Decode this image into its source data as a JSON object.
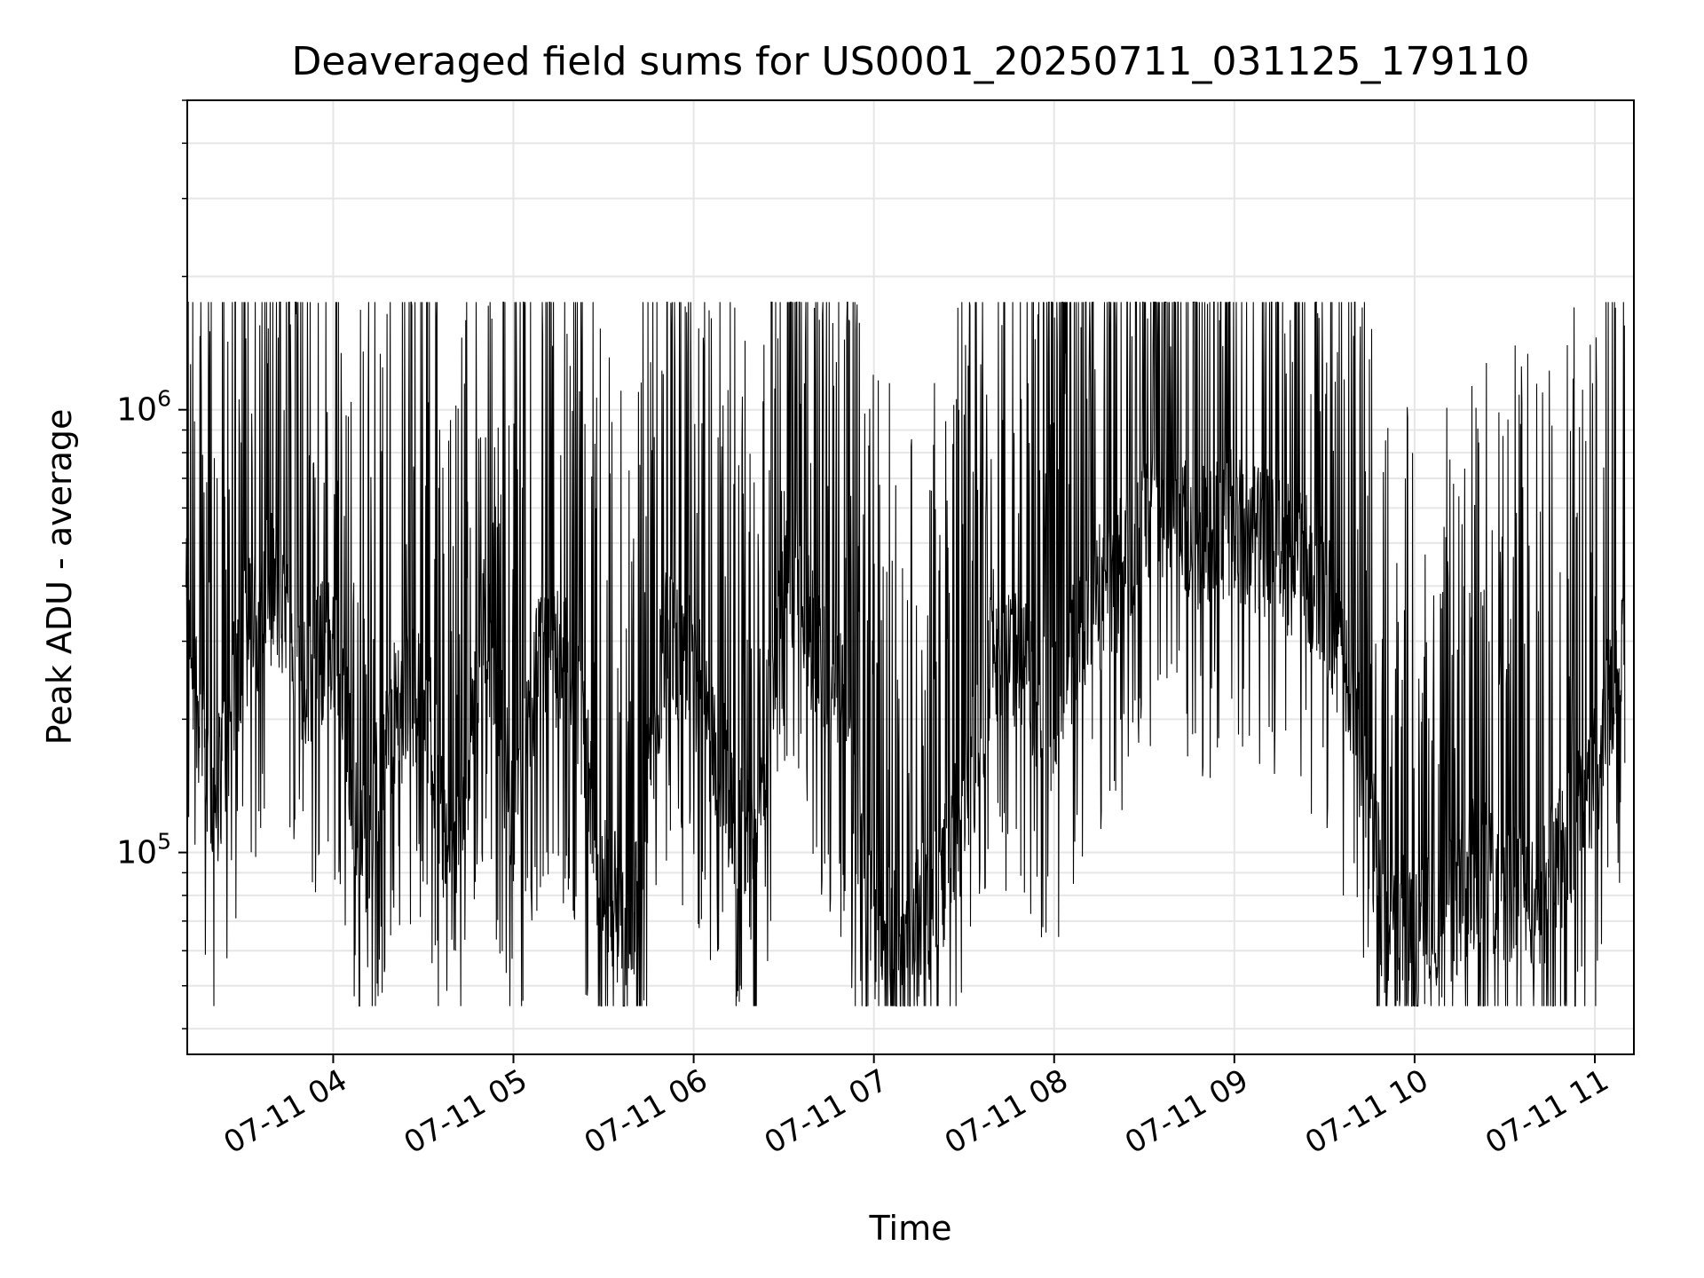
{
  "chart_data": {
    "type": "line",
    "title": "Deaveraged field sums for US0001_20250711_031125_179110",
    "xlabel": "Time",
    "ylabel": "Peak ADU - average",
    "y_scale": "log",
    "x_range": [
      "2025-07-11 03:11:25",
      "2025-07-11 11:13:00"
    ],
    "y_range": [
      35000,
      5000000
    ],
    "x_ticks": [
      {
        "value": "2025-07-11 04:00",
        "label": "07-11 04"
      },
      {
        "value": "2025-07-11 05:00",
        "label": "07-11 05"
      },
      {
        "value": "2025-07-11 06:00",
        "label": "07-11 06"
      },
      {
        "value": "2025-07-11 07:00",
        "label": "07-11 07"
      },
      {
        "value": "2025-07-11 08:00",
        "label": "07-11 08"
      },
      {
        "value": "2025-07-11 09:00",
        "label": "07-11 09"
      },
      {
        "value": "2025-07-11 10:00",
        "label": "07-11 10"
      },
      {
        "value": "2025-07-11 11:00",
        "label": "07-11 11"
      }
    ],
    "y_ticks": [
      {
        "value": 100000,
        "base": "10",
        "exp": "5"
      },
      {
        "value": 1000000,
        "base": "10",
        "exp": "6"
      }
    ],
    "grid": true,
    "line_color": "#000000",
    "grid_color": "#e6e6e6",
    "series": [
      {
        "x": [
          "2025-07-11 03:11",
          "2025-07-11 03:20",
          "2025-07-11 03:30",
          "2025-07-11 03:40",
          "2025-07-11 03:50",
          "2025-07-11 04:00",
          "2025-07-11 04:10",
          "2025-07-11 04:20",
          "2025-07-11 04:30",
          "2025-07-11 04:40",
          "2025-07-11 04:50",
          "2025-07-11 05:00",
          "2025-07-11 05:10",
          "2025-07-11 05:20",
          "2025-07-11 05:30",
          "2025-07-11 05:40",
          "2025-07-11 05:50",
          "2025-07-11 06:00",
          "2025-07-11 06:10",
          "2025-07-11 06:20",
          "2025-07-11 06:30",
          "2025-07-11 06:40",
          "2025-07-11 06:50",
          "2025-07-11 07:00",
          "2025-07-11 07:10",
          "2025-07-11 07:20",
          "2025-07-11 07:30",
          "2025-07-11 07:40",
          "2025-07-11 07:50",
          "2025-07-11 08:00",
          "2025-07-11 08:10",
          "2025-07-11 08:20",
          "2025-07-11 08:30",
          "2025-07-11 08:40",
          "2025-07-11 08:50",
          "2025-07-11 09:00",
          "2025-07-11 09:10",
          "2025-07-11 09:20",
          "2025-07-11 09:30",
          "2025-07-11 09:40",
          "2025-07-11 09:50",
          "2025-07-11 10:00",
          "2025-07-11 10:10",
          "2025-07-11 10:20",
          "2025-07-11 10:30",
          "2025-07-11 10:40",
          "2025-07-11 10:50",
          "2025-07-11 11:00",
          "2025-07-11 11:10"
        ],
        "y": [
          350000,
          120000,
          300000,
          400000,
          250000,
          300000,
          100000,
          200000,
          250000,
          80000,
          350000,
          120000,
          300000,
          250000,
          80000,
          70000,
          300000,
          250000,
          150000,
          90000,
          500000,
          300000,
          200000,
          70000,
          60000,
          80000,
          120000,
          300000,
          250000,
          200000,
          350000,
          400000,
          550000,
          600000,
          500000,
          550000,
          500000,
          450000,
          400000,
          200000,
          70000,
          65000,
          70000,
          90000,
          85000,
          75000,
          100000,
          150000,
          350000
        ]
      }
    ]
  }
}
